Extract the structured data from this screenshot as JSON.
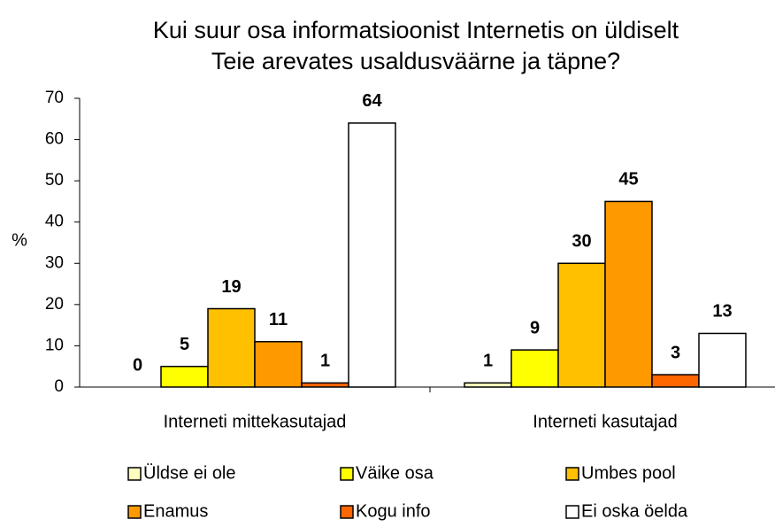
{
  "chart_data": {
    "type": "bar",
    "title": [
      "Kui suur osa informatsioonist Internetis on üldiselt",
      "Teie arevates usaldusväärne ja täpne?"
    ],
    "y_label": "%",
    "categories": [
      "Interneti mittekasutajad",
      "Interneti kasutajad"
    ],
    "series": [
      {
        "name": "Üldse ei ole",
        "color": "#ffffc0",
        "values": [
          0,
          1
        ]
      },
      {
        "name": "Väike osa",
        "color": "#ffff00",
        "values": [
          5,
          9
        ]
      },
      {
        "name": "Umbes pool",
        "color": "#ffc000",
        "values": [
          19,
          30
        ]
      },
      {
        "name": "Enamus",
        "color": "#ff9900",
        "values": [
          11,
          45
        ]
      },
      {
        "name": "Kogu info",
        "color": "#ff6600",
        "values": [
          1,
          3
        ]
      },
      {
        "name": "Ei oska öelda",
        "color": "#ffffff",
        "values": [
          64,
          13
        ]
      }
    ],
    "ylim": [
      0,
      70
    ],
    "yticks": [
      0,
      10,
      20,
      30,
      40,
      50,
      60,
      70
    ]
  }
}
